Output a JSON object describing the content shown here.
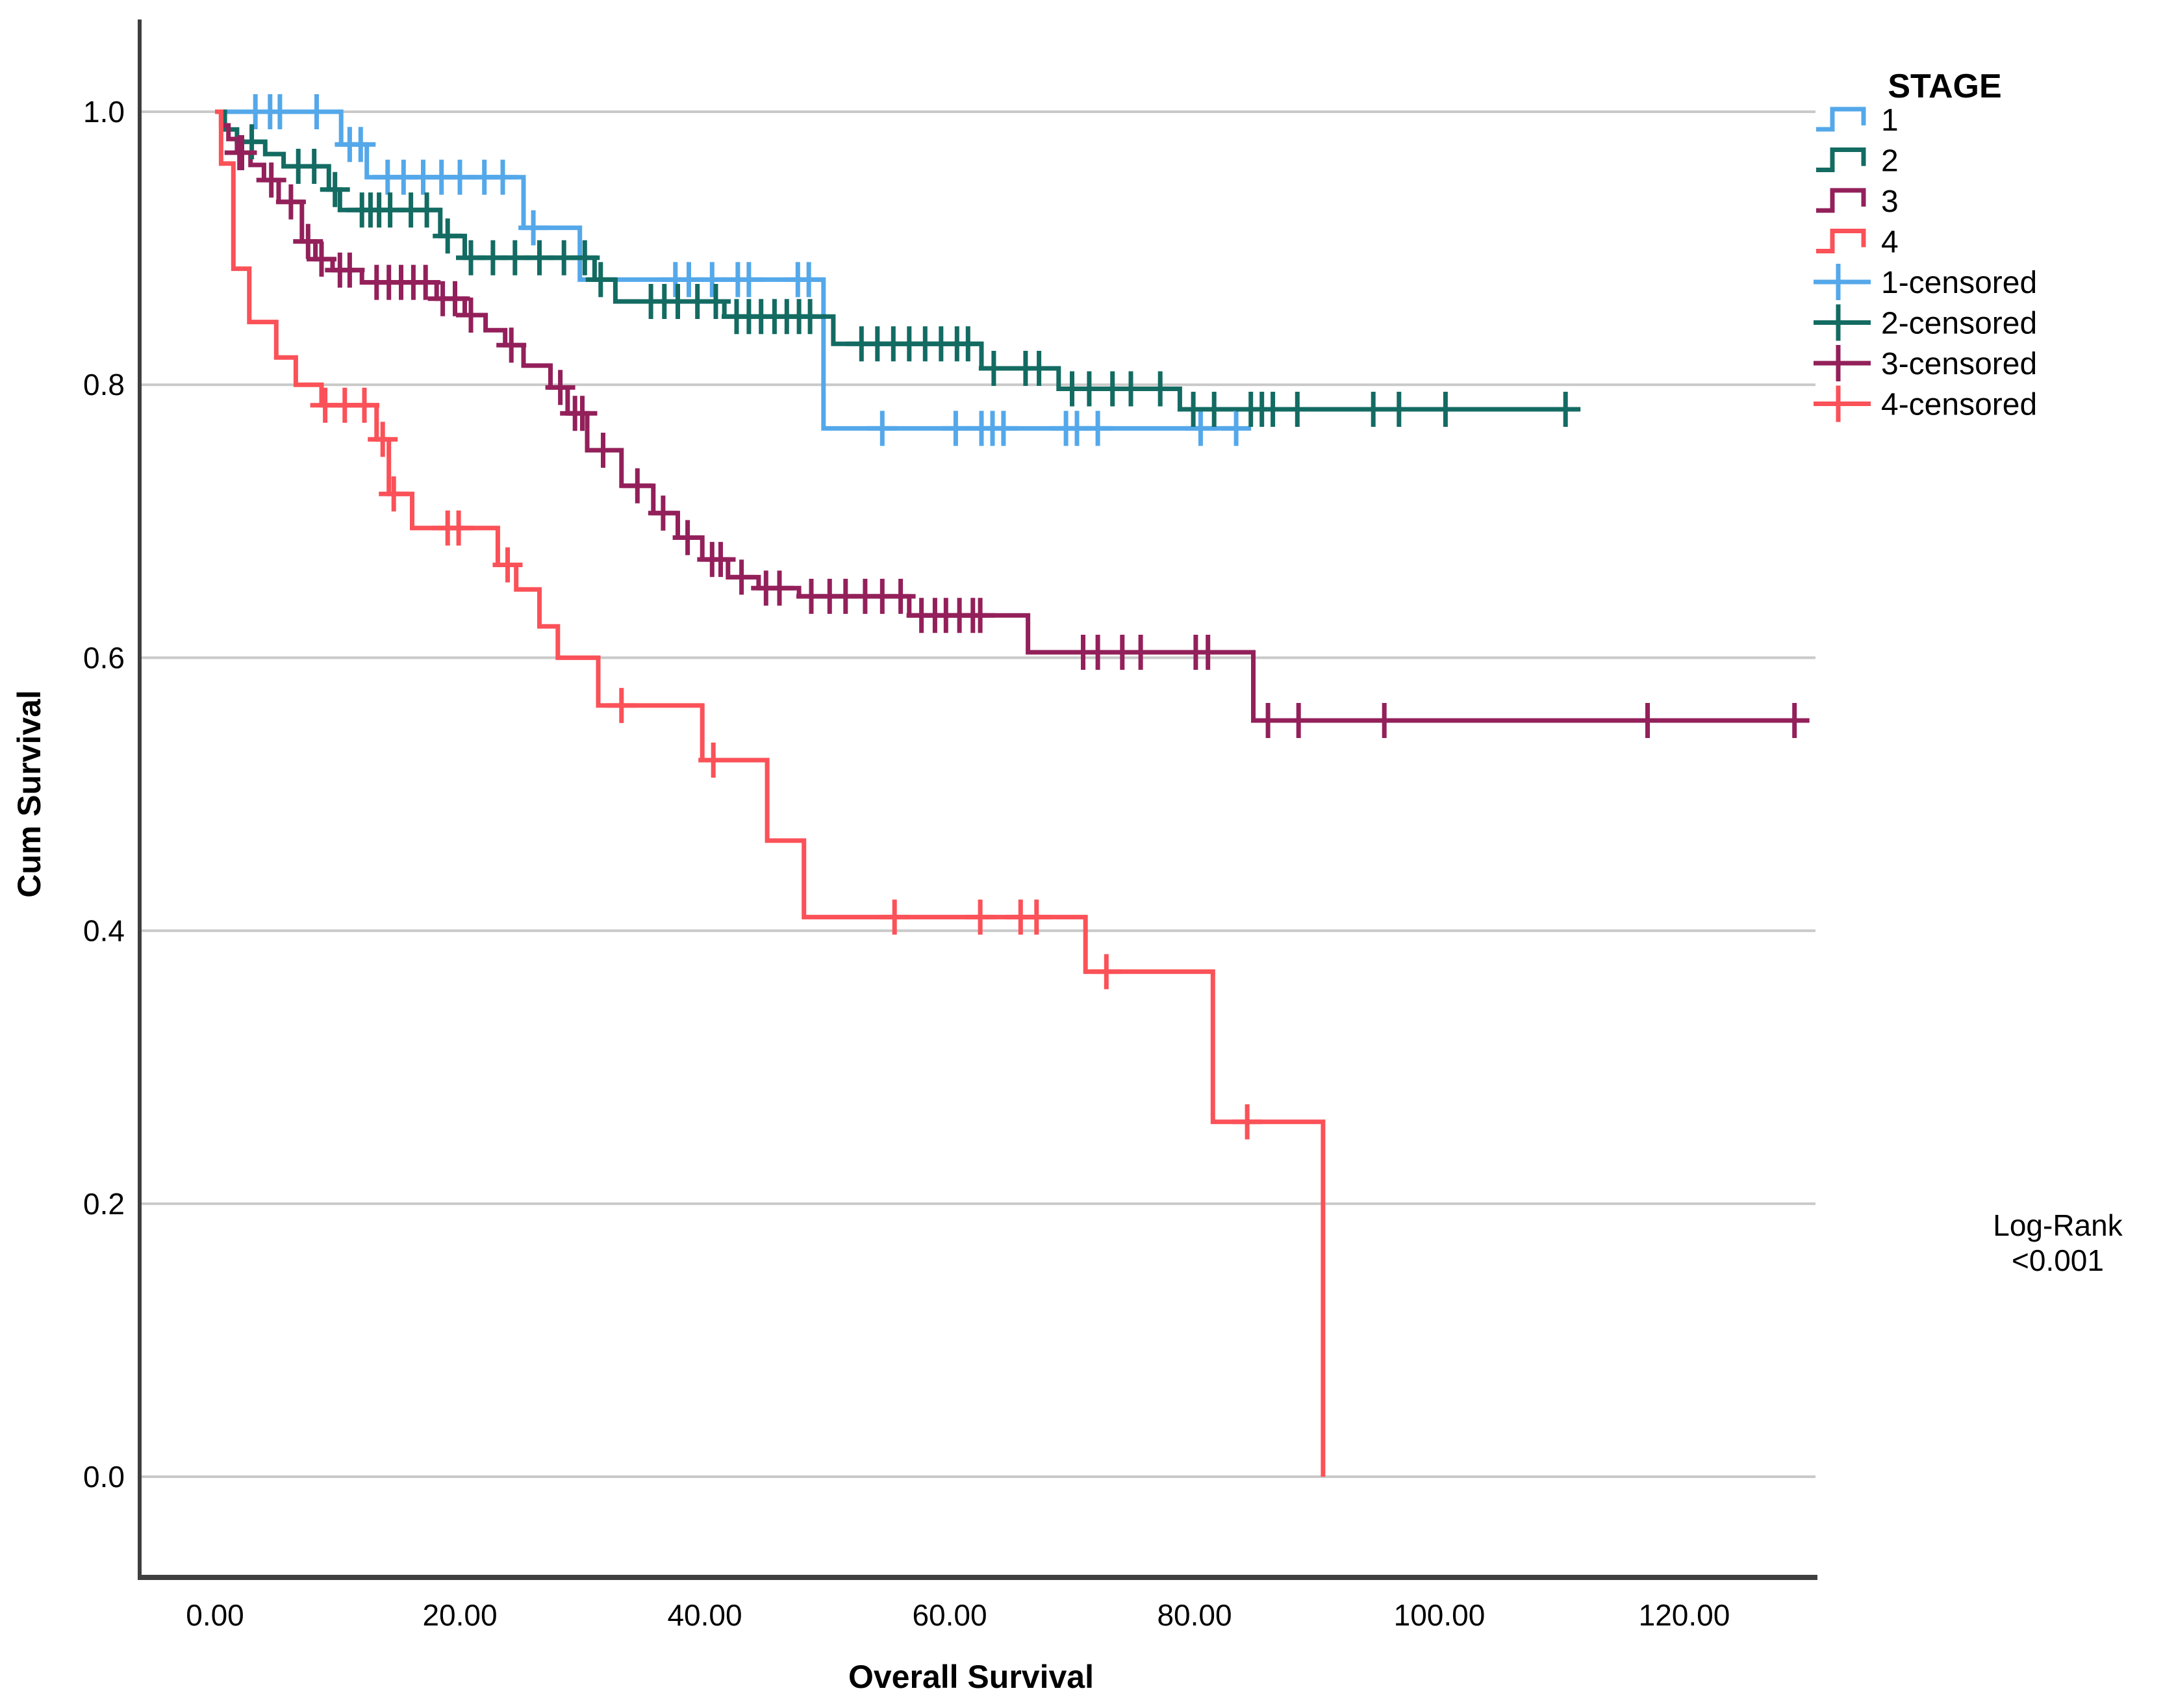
{
  "legend": {
    "title": "STAGE",
    "entries": [
      {
        "label": "1",
        "color": "#54a8ea",
        "type": "step"
      },
      {
        "label": "2",
        "color": "#136b62",
        "type": "step"
      },
      {
        "label": "3",
        "color": "#93205a",
        "type": "step"
      },
      {
        "label": "4",
        "color": "#fb5158",
        "type": "step"
      },
      {
        "label": "1-censored",
        "color": "#54a8ea",
        "type": "plus"
      },
      {
        "label": "2-censored",
        "color": "#136b62",
        "type": "plus"
      },
      {
        "label": "3-censored",
        "color": "#93205a",
        "type": "plus"
      },
      {
        "label": "4-censored",
        "color": "#fb5158",
        "type": "plus"
      }
    ]
  },
  "annotation": {
    "line1": "Log-Rank",
    "line2": "<0.001"
  },
  "chart_data": {
    "type": "line",
    "subtype": "kaplan-meier-step",
    "title": "",
    "xlabel": "Overall Survival",
    "ylabel": "Cum Survival",
    "xlim": [
      -6.2,
      130.7
    ],
    "ylim": [
      -0.074,
      1.068
    ],
    "grid": "horizontal",
    "legend_position": "right",
    "x_ticks": [
      {
        "value": 0,
        "label": "0.00"
      },
      {
        "value": 20,
        "label": "20.00"
      },
      {
        "value": 40,
        "label": "40.00"
      },
      {
        "value": 60,
        "label": "60.00"
      },
      {
        "value": 80,
        "label": "80.00"
      },
      {
        "value": 100,
        "label": "100.00"
      },
      {
        "value": 120,
        "label": "120.00"
      }
    ],
    "y_ticks": [
      {
        "value": 0.0,
        "label": "0.0"
      },
      {
        "value": 0.2,
        "label": "0.2"
      },
      {
        "value": 0.4,
        "label": "0.4"
      },
      {
        "value": 0.6,
        "label": "0.6"
      },
      {
        "value": 0.8,
        "label": "0.8"
      },
      {
        "value": 1.0,
        "label": "1.0"
      }
    ],
    "series": [
      {
        "name": "1",
        "color": "#54a8ea",
        "end": 83.4,
        "steps": [
          [
            0,
            1.0
          ],
          [
            10.3,
            0.976
          ],
          [
            12.4,
            0.952
          ],
          [
            25.2,
            0.915
          ],
          [
            29.8,
            0.877
          ],
          [
            49.7,
            0.768
          ]
        ],
        "censors": [
          [
            3.3,
            1.0
          ],
          [
            4.5,
            1.0
          ],
          [
            5.3,
            1.0
          ],
          [
            8.3,
            1.0
          ],
          [
            11.0,
            0.976
          ],
          [
            11.9,
            0.976
          ],
          [
            14.1,
            0.952
          ],
          [
            15.4,
            0.952
          ],
          [
            17.0,
            0.952
          ],
          [
            18.5,
            0.952
          ],
          [
            20.0,
            0.952
          ],
          [
            22.0,
            0.952
          ],
          [
            23.5,
            0.952
          ],
          [
            26.0,
            0.915
          ],
          [
            37.6,
            0.877
          ],
          [
            38.7,
            0.877
          ],
          [
            40.6,
            0.877
          ],
          [
            42.7,
            0.877
          ],
          [
            43.6,
            0.877
          ],
          [
            47.6,
            0.877
          ],
          [
            48.5,
            0.877
          ],
          [
            54.5,
            0.768
          ],
          [
            60.5,
            0.768
          ],
          [
            62.6,
            0.768
          ],
          [
            63.5,
            0.768
          ],
          [
            64.4,
            0.768
          ],
          [
            69.5,
            0.768
          ],
          [
            70.4,
            0.768
          ],
          [
            72.1,
            0.768
          ],
          [
            80.5,
            0.768
          ],
          [
            83.4,
            0.768
          ]
        ]
      },
      {
        "name": "2",
        "color": "#136b62",
        "end": 110.3,
        "steps": [
          [
            0,
            1.0
          ],
          [
            0.8,
            0.987
          ],
          [
            1.8,
            0.978
          ],
          [
            4.1,
            0.969
          ],
          [
            5.6,
            0.96
          ],
          [
            9.3,
            0.943
          ],
          [
            10.2,
            0.928
          ],
          [
            18.4,
            0.909
          ],
          [
            20.4,
            0.893
          ],
          [
            31.0,
            0.877
          ],
          [
            32.7,
            0.861
          ],
          [
            41.6,
            0.85
          ],
          [
            50.5,
            0.83
          ],
          [
            62.6,
            0.812
          ],
          [
            68.9,
            0.797
          ],
          [
            78.8,
            0.782
          ]
        ],
        "censors": [
          [
            3.0,
            0.978
          ],
          [
            6.8,
            0.96
          ],
          [
            8.1,
            0.96
          ],
          [
            9.8,
            0.943
          ],
          [
            12.0,
            0.928
          ],
          [
            12.7,
            0.928
          ],
          [
            13.4,
            0.928
          ],
          [
            14.3,
            0.928
          ],
          [
            16.0,
            0.928
          ],
          [
            17.3,
            0.928
          ],
          [
            19.0,
            0.909
          ],
          [
            20.9,
            0.893
          ],
          [
            22.7,
            0.893
          ],
          [
            24.5,
            0.893
          ],
          [
            26.5,
            0.893
          ],
          [
            28.5,
            0.893
          ],
          [
            30.2,
            0.893
          ],
          [
            31.5,
            0.877
          ],
          [
            35.6,
            0.861
          ],
          [
            36.7,
            0.861
          ],
          [
            37.8,
            0.861
          ],
          [
            39.4,
            0.861
          ],
          [
            40.9,
            0.861
          ],
          [
            42.6,
            0.85
          ],
          [
            43.6,
            0.85
          ],
          [
            44.6,
            0.85
          ],
          [
            45.7,
            0.85
          ],
          [
            46.7,
            0.85
          ],
          [
            47.7,
            0.85
          ],
          [
            48.6,
            0.85
          ],
          [
            52.8,
            0.83
          ],
          [
            54.1,
            0.83
          ],
          [
            55.4,
            0.83
          ],
          [
            56.7,
            0.83
          ],
          [
            58.0,
            0.83
          ],
          [
            59.3,
            0.83
          ],
          [
            60.6,
            0.83
          ],
          [
            61.5,
            0.83
          ],
          [
            63.6,
            0.812
          ],
          [
            66.2,
            0.812
          ],
          [
            67.3,
            0.812
          ],
          [
            70.0,
            0.797
          ],
          [
            71.4,
            0.797
          ],
          [
            73.3,
            0.797
          ],
          [
            74.8,
            0.797
          ],
          [
            77.2,
            0.797
          ],
          [
            79.9,
            0.782
          ],
          [
            81.6,
            0.782
          ],
          [
            84.6,
            0.782
          ],
          [
            85.5,
            0.782
          ],
          [
            86.4,
            0.782
          ],
          [
            88.4,
            0.782
          ],
          [
            94.6,
            0.782
          ],
          [
            96.7,
            0.782
          ],
          [
            100.5,
            0.782
          ],
          [
            110.3,
            0.782
          ]
        ]
      },
      {
        "name": "3",
        "color": "#93205a",
        "end": 129,
        "steps": [
          [
            0,
            1.0
          ],
          [
            0.5,
            0.99
          ],
          [
            1.1,
            0.98
          ],
          [
            1.8,
            0.97
          ],
          [
            2.9,
            0.961
          ],
          [
            4.0,
            0.95
          ],
          [
            5.2,
            0.934
          ],
          [
            7.1,
            0.905
          ],
          [
            8.2,
            0.892
          ],
          [
            9.6,
            0.884
          ],
          [
            12.0,
            0.875
          ],
          [
            18.1,
            0.863
          ],
          [
            20.4,
            0.851
          ],
          [
            22.1,
            0.84
          ],
          [
            23.7,
            0.829
          ],
          [
            25.2,
            0.814
          ],
          [
            27.4,
            0.798
          ],
          [
            28.8,
            0.779
          ],
          [
            30.4,
            0.752
          ],
          [
            33.2,
            0.726
          ],
          [
            35.8,
            0.706
          ],
          [
            37.8,
            0.688
          ],
          [
            39.8,
            0.672
          ],
          [
            41.9,
            0.659
          ],
          [
            44.4,
            0.651
          ],
          [
            47.7,
            0.645
          ],
          [
            56.7,
            0.631
          ],
          [
            66.4,
            0.604
          ],
          [
            84.8,
            0.554
          ]
        ],
        "censors": [
          [
            2.0,
            0.97
          ],
          [
            2.2,
            0.97
          ],
          [
            4.6,
            0.95
          ],
          [
            6.2,
            0.934
          ],
          [
            7.6,
            0.905
          ],
          [
            8.7,
            0.892
          ],
          [
            10.2,
            0.884
          ],
          [
            11.0,
            0.884
          ],
          [
            13.2,
            0.875
          ],
          [
            14.2,
            0.875
          ],
          [
            15.2,
            0.875
          ],
          [
            16.2,
            0.875
          ],
          [
            17.2,
            0.875
          ],
          [
            18.6,
            0.863
          ],
          [
            19.6,
            0.863
          ],
          [
            20.9,
            0.851
          ],
          [
            24.2,
            0.829
          ],
          [
            28.2,
            0.798
          ],
          [
            29.4,
            0.779
          ],
          [
            30.0,
            0.779
          ],
          [
            31.7,
            0.752
          ],
          [
            34.5,
            0.726
          ],
          [
            36.6,
            0.706
          ],
          [
            38.6,
            0.688
          ],
          [
            40.6,
            0.672
          ],
          [
            41.3,
            0.672
          ],
          [
            43.0,
            0.659
          ],
          [
            45.0,
            0.651
          ],
          [
            46.1,
            0.651
          ],
          [
            48.7,
            0.645
          ],
          [
            50.2,
            0.645
          ],
          [
            51.5,
            0.645
          ],
          [
            53.1,
            0.645
          ],
          [
            54.5,
            0.645
          ],
          [
            56.0,
            0.645
          ],
          [
            57.7,
            0.631
          ],
          [
            58.8,
            0.631
          ],
          [
            59.7,
            0.631
          ],
          [
            60.8,
            0.631
          ],
          [
            61.9,
            0.631
          ],
          [
            62.5,
            0.631
          ],
          [
            70.9,
            0.604
          ],
          [
            72.1,
            0.604
          ],
          [
            74.1,
            0.604
          ],
          [
            75.6,
            0.604
          ],
          [
            80.1,
            0.604
          ],
          [
            81.1,
            0.604
          ],
          [
            86.0,
            0.554
          ],
          [
            88.5,
            0.554
          ],
          [
            95.5,
            0.554
          ],
          [
            117,
            0.554
          ],
          [
            129,
            0.554
          ]
        ]
      },
      {
        "name": "4",
        "color": "#fb5158",
        "end": 90.5,
        "steps": [
          [
            0,
            1.0
          ],
          [
            0.5,
            0.962
          ],
          [
            1.5,
            0.885
          ],
          [
            2.8,
            0.846
          ],
          [
            5.0,
            0.82
          ],
          [
            6.6,
            0.8
          ],
          [
            8.7,
            0.785
          ],
          [
            13.2,
            0.76
          ],
          [
            14.2,
            0.72
          ],
          [
            16.1,
            0.695
          ],
          [
            23.1,
            0.668
          ],
          [
            24.6,
            0.65
          ],
          [
            26.5,
            0.623
          ],
          [
            28.0,
            0.6
          ],
          [
            31.3,
            0.565
          ],
          [
            39.8,
            0.525
          ],
          [
            45.1,
            0.466
          ],
          [
            48.1,
            0.41
          ],
          [
            71.1,
            0.37
          ],
          [
            81.5,
            0.26
          ],
          [
            90.5,
            0.0
          ]
        ],
        "censors": [
          [
            9.0,
            0.785
          ],
          [
            10.6,
            0.785
          ],
          [
            12.2,
            0.785
          ],
          [
            13.7,
            0.76
          ],
          [
            14.6,
            0.72
          ],
          [
            19.0,
            0.695
          ],
          [
            19.9,
            0.695
          ],
          [
            23.9,
            0.668
          ],
          [
            33.2,
            0.565
          ],
          [
            40.7,
            0.525
          ],
          [
            55.5,
            0.41
          ],
          [
            62.5,
            0.41
          ],
          [
            65.8,
            0.41
          ],
          [
            67.1,
            0.41
          ],
          [
            72.8,
            0.37
          ],
          [
            84.3,
            0.26
          ]
        ]
      }
    ]
  }
}
